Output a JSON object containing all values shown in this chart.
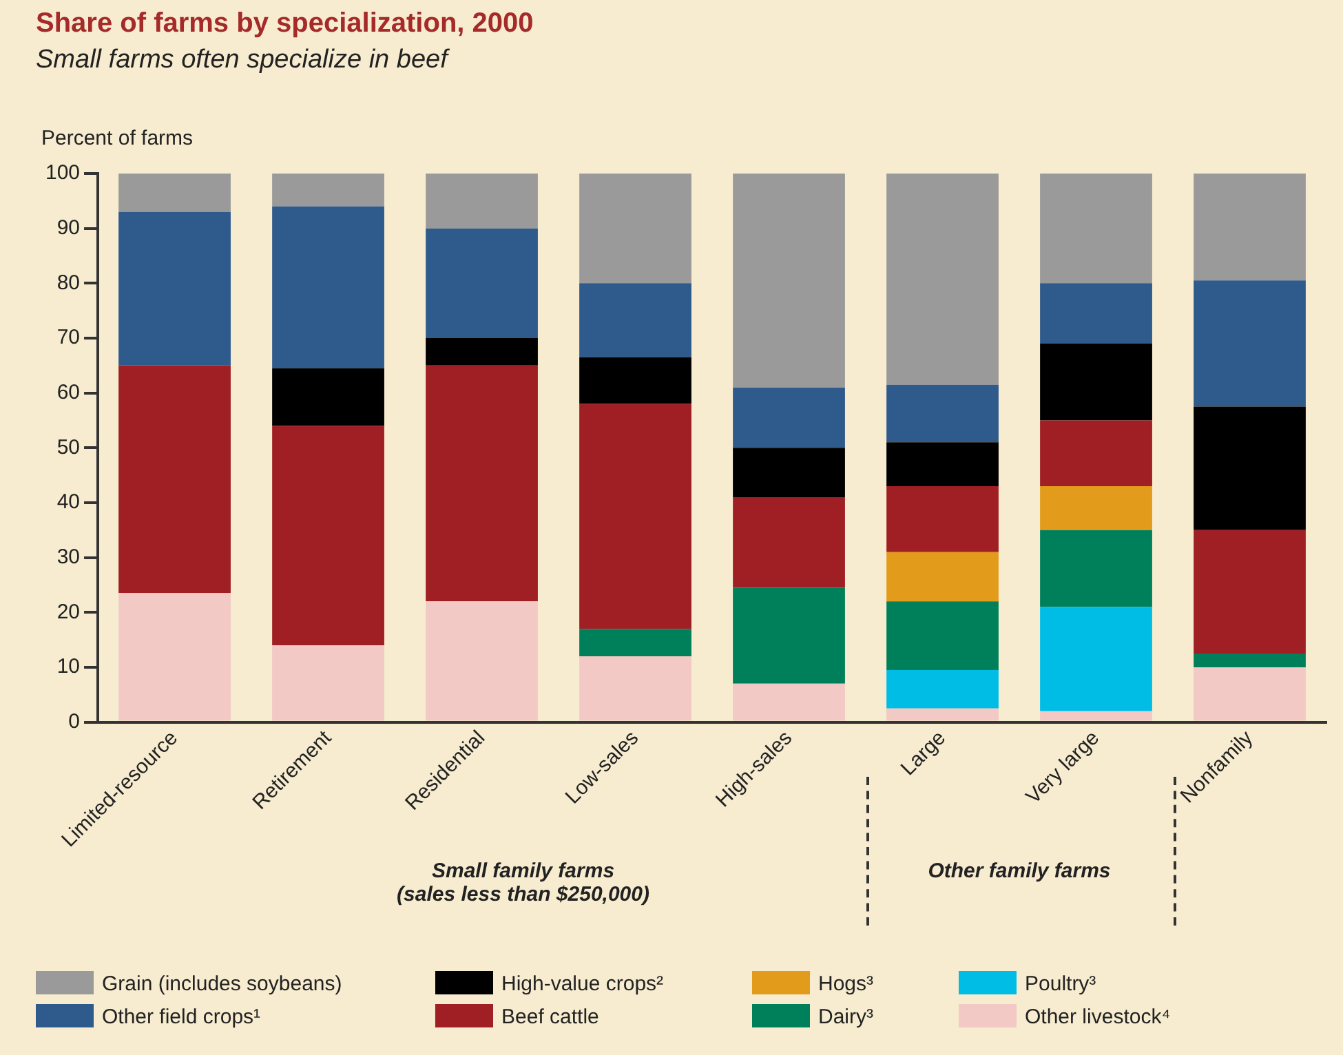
{
  "chart_data": {
    "type": "bar",
    "title": "Share of farms by specialization, 2000",
    "subtitle": "Small farms often specialize in beef",
    "ylabel": "Percent of farms",
    "categories": [
      "Limited-resource",
      "Retirement",
      "Residential",
      "Low-sales",
      "High-sales",
      "Large",
      "Very large",
      "Nonfamily"
    ],
    "stacked": true,
    "ylim": [
      0,
      100
    ],
    "yticks": [
      0,
      10,
      20,
      30,
      40,
      50,
      60,
      70,
      80,
      90,
      100
    ],
    "grid": false,
    "legend": "bottom",
    "annotations": [
      "Small family farms\n(sales less than $250,000)",
      "Other family farms"
    ],
    "series": [
      {
        "name": "Other livestock⁴",
        "color": "#f2c9c4",
        "values": [
          23.5,
          14,
          22,
          12,
          7,
          2.5,
          2,
          10
        ]
      },
      {
        "name": "Poultry³",
        "color": "#00bde6",
        "values": [
          0,
          0,
          0,
          0,
          0,
          7,
          19,
          0
        ]
      },
      {
        "name": "Dairy³",
        "color": "#00805a",
        "values": [
          0,
          0,
          0,
          5,
          17.5,
          12.5,
          14,
          2.5
        ]
      },
      {
        "name": "Hogs³",
        "color": "#e39b1c",
        "values": [
          0,
          0,
          0,
          0,
          0,
          9,
          8,
          0
        ]
      },
      {
        "name": "Beef cattle",
        "color": "#a01f24",
        "values": [
          41.5,
          40,
          43,
          41,
          16.5,
          12,
          12,
          22.5
        ]
      },
      {
        "name": "High-value crops²",
        "color": "#000000",
        "values": [
          0,
          10.5,
          5,
          8.5,
          9,
          8,
          14,
          22.5
        ]
      },
      {
        "name": "Other field crops¹",
        "color": "#2e5a8c",
        "values": [
          28,
          29.5,
          20,
          13.5,
          11,
          10.5,
          11,
          23
        ]
      },
      {
        "name": "Grain (includes soybeans)",
        "color": "#9a9a9a",
        "values": [
          7,
          6,
          10,
          20,
          39,
          38.5,
          20,
          19.5
        ]
      }
    ]
  }
}
